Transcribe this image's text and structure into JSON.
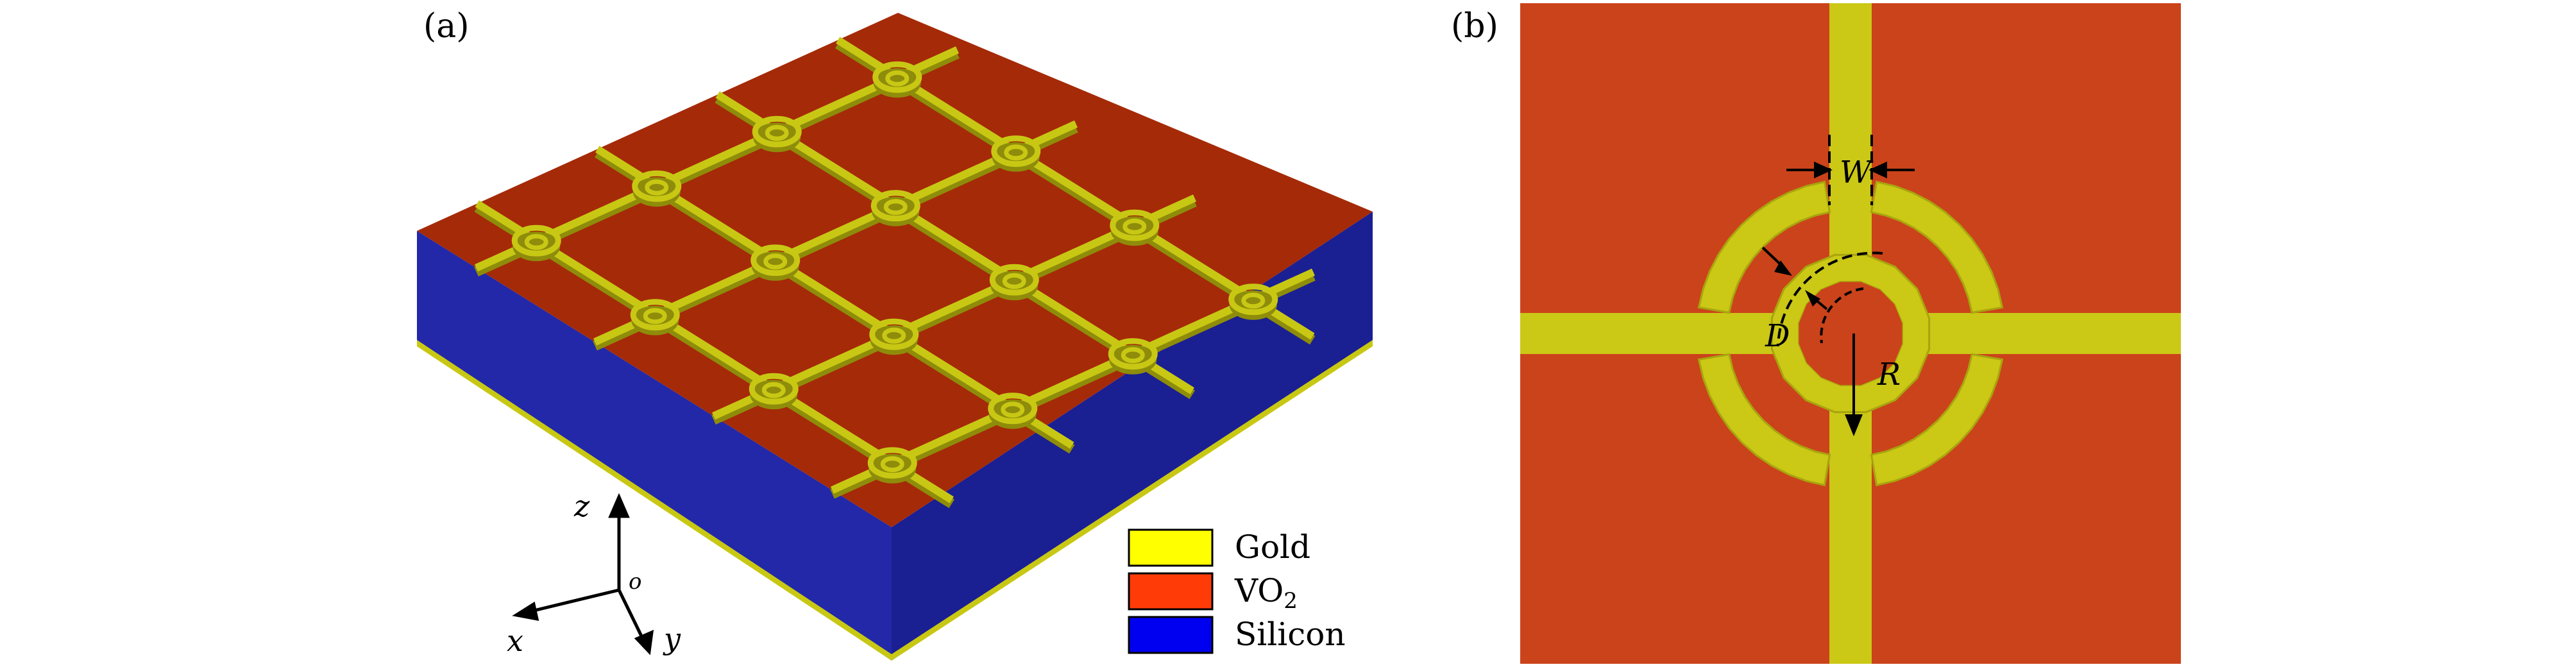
{
  "panel_a": {
    "label": "(a)",
    "axes": {
      "z": "z",
      "x": "x",
      "y": "y",
      "origin": "o"
    },
    "legend": [
      {
        "name": "Gold",
        "color": "#ffff00"
      },
      {
        "name": "VO",
        "subscript": "2",
        "color": "#ff3c08"
      },
      {
        "name": "Silicon",
        "color": "#0000f0"
      }
    ],
    "colors": {
      "vo2_top": "#a52a08",
      "silicon_front": "#2228a8",
      "silicon_side": "#1a1f92",
      "gold_metal": "#c8c814",
      "gold_metal_dark": "#8e8c0a"
    }
  },
  "panel_b": {
    "label": "(b)",
    "dimension_labels": {
      "width": "W",
      "gap": "D",
      "radius": "R"
    },
    "colors": {
      "vo2": "#cb431a",
      "gold": "#cbc816",
      "gold_edge": "#a8a40e"
    }
  }
}
